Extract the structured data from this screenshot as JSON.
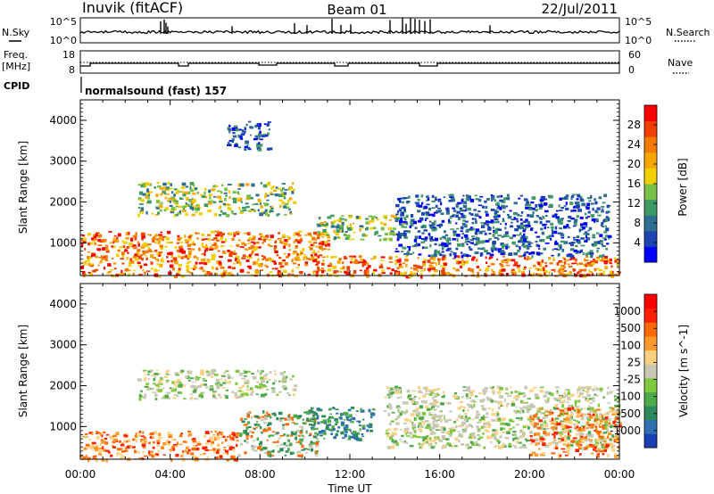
{
  "header": {
    "station": "Inuvik (fitACF)",
    "beam": "Beam 01",
    "date": "22/Jul/2011"
  },
  "strip_panels": {
    "nsky_label": "N.Sky",
    "nsky_ticks": [
      "10^5",
      "10^0"
    ],
    "nsearch_label": "N.Search",
    "nsearch_ticks": [
      "10^5",
      "10^0"
    ],
    "freq_label": "Freq.",
    "freq_unit": "[MHz]",
    "freq_ticks": [
      "18",
      "8"
    ],
    "nave_label": "Nave",
    "nave_ticks": [
      "60",
      "0"
    ],
    "cpid_label": "CPID",
    "cpid_value": "normalsound (fast) 157"
  },
  "chart_data": [
    {
      "type": "heatmap",
      "name": "power",
      "ylabel": "Slant Range [km]",
      "xlabel": "Time UT",
      "yticks": [
        "1000",
        "2000",
        "3000",
        "4000"
      ],
      "ylim": [
        200,
        4500
      ],
      "xticks": [
        "00:00",
        "04:00",
        "08:00",
        "12:00",
        "16:00",
        "20:00",
        "00:00"
      ],
      "xlim_hours": [
        0,
        24
      ],
      "colorbar": {
        "label": "Power [dB]",
        "ticks": [
          "4",
          "8",
          "12",
          "16",
          "20",
          "24",
          "28"
        ],
        "colors": [
          "#0000ff",
          "#1c44b0",
          "#2e6e8e",
          "#3f9a66",
          "#78c048",
          "#f0d000",
          "#f7a800",
          "#f67a00",
          "#f04000",
          "#ff0000"
        ]
      },
      "echo_bands": [
        {
          "t0": 0.0,
          "t1": 24.0,
          "r0": 200,
          "r1": 700,
          "level": "high"
        },
        {
          "t0": 0.0,
          "t1": 11.0,
          "r0": 700,
          "r1": 1300,
          "level": "high"
        },
        {
          "t0": 10.5,
          "t1": 14.5,
          "r0": 1100,
          "r1": 1700,
          "level": "mid"
        },
        {
          "t0": 2.5,
          "t1": 9.5,
          "r0": 1700,
          "r1": 2500,
          "level": "mid"
        },
        {
          "t0": 14.0,
          "t1": 23.5,
          "r0": 700,
          "r1": 2200,
          "level": "low"
        },
        {
          "t0": 6.5,
          "t1": 8.5,
          "r0": 3300,
          "r1": 4000,
          "level": "low"
        }
      ]
    },
    {
      "type": "heatmap",
      "name": "velocity",
      "ylabel": "Slant Range [km]",
      "xlabel": "Time UT",
      "yticks": [
        "1000",
        "2000",
        "3000",
        "4000"
      ],
      "ylim": [
        200,
        4500
      ],
      "xticks": [
        "00:00",
        "04:00",
        "08:00",
        "12:00",
        "16:00",
        "20:00",
        "00:00"
      ],
      "xlim_hours": [
        0,
        24
      ],
      "colorbar": {
        "label": "Velocity [m s^-1]",
        "ticks": [
          "1000",
          "500",
          "100",
          "25",
          "-25",
          "-100",
          "-500",
          "-1000"
        ],
        "colors": [
          "#1d3fb4",
          "#2f6fb0",
          "#2e8a5a",
          "#4ea94a",
          "#80c840",
          "#c8c8b4",
          "#ffd080",
          "#ff9a2a",
          "#ff6a00",
          "#ff2000",
          "#ff0000"
        ]
      },
      "echo_bands": [
        {
          "t0": 0.0,
          "t1": 7.0,
          "r0": 200,
          "r1": 900,
          "level": "positive"
        },
        {
          "t0": 7.0,
          "t1": 10.5,
          "r0": 300,
          "r1": 1400,
          "level": "mixed"
        },
        {
          "t0": 10.0,
          "t1": 13.0,
          "r0": 700,
          "r1": 1500,
          "level": "negative"
        },
        {
          "t0": 2.5,
          "t1": 9.5,
          "r0": 1700,
          "r1": 2400,
          "level": "near-zero"
        },
        {
          "t0": 13.5,
          "t1": 24.0,
          "r0": 500,
          "r1": 2000,
          "level": "near-zero"
        },
        {
          "t0": 20.0,
          "t1": 24.0,
          "r0": 300,
          "r1": 1500,
          "level": "positive"
        }
      ]
    }
  ]
}
